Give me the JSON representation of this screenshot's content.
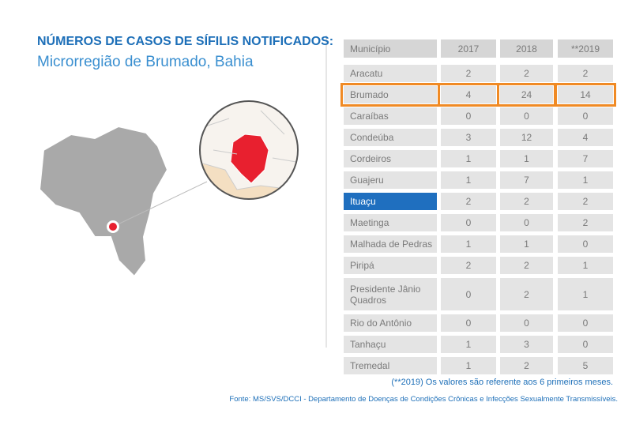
{
  "header": {
    "title": "NÚMEROS DE CASOS DE SÍFILIS NOTIFICADOS:",
    "subtitle": "Microrregião de Brumado, Bahia"
  },
  "table": {
    "columns": [
      "Município",
      "2017",
      "2018",
      "**2019"
    ],
    "rows": [
      [
        "Aracatu",
        2,
        2,
        2
      ],
      [
        "Brumado",
        4,
        24,
        14
      ],
      [
        "Caraíbas",
        0,
        0,
        0
      ],
      [
        "Condeúba",
        3,
        12,
        4
      ],
      [
        "Cordeiros",
        1,
        1,
        7
      ],
      [
        "Guajeru",
        1,
        7,
        1
      ],
      [
        "Ituaçu",
        2,
        2,
        2
      ],
      [
        "Maetinga",
        0,
        0,
        2
      ],
      [
        "Malhada de Pedras",
        1,
        1,
        0
      ],
      [
        "Piripá",
        2,
        2,
        1
      ],
      [
        "Presidente Jânio Quadros",
        0,
        2,
        1
      ],
      [
        "Rio do Antônio",
        0,
        0,
        0
      ],
      [
        "Tanhaçu",
        1,
        3,
        0
      ],
      [
        "Tremedal",
        1,
        2,
        5
      ]
    ]
  },
  "footnote": "(**2019) Os valores são referente aos 6 primeiros meses.",
  "source": "Fonte: MS/SVS/DCCI - Departamento de Doenças de Condições Crônicas e Infecções Sexualmente Transmissíveis."
}
